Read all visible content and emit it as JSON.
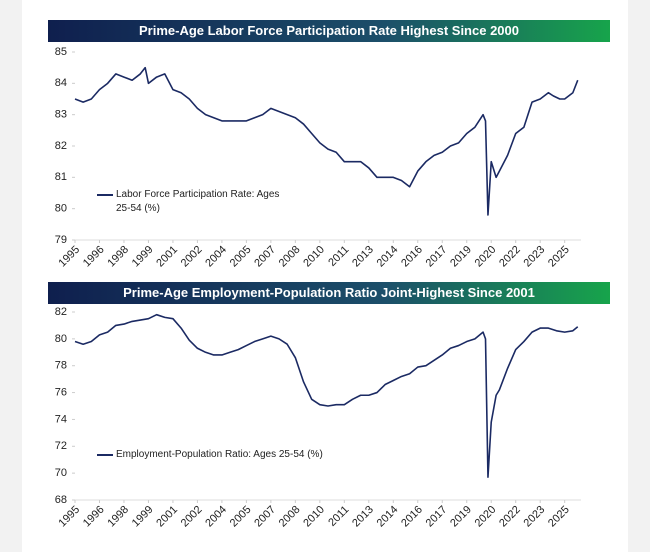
{
  "chart_data": [
    {
      "type": "line",
      "title": "Prime-Age Labor Force Participation Rate Highest Since 2000",
      "x": [
        1995,
        1995.5,
        1996,
        1996.5,
        1997,
        1997.5,
        1998,
        1998.5,
        1999,
        1999.3,
        1999.5,
        2000,
        2000.5,
        2001,
        2001.5,
        2002,
        2002.5,
        2003,
        2003.5,
        2004,
        2004.5,
        2005,
        2005.5,
        2006,
        2006.5,
        2007,
        2007.5,
        2008,
        2008.5,
        2009,
        2009.5,
        2010,
        2010.5,
        2011,
        2011.5,
        2012,
        2012.5,
        2013,
        2013.5,
        2014,
        2014.5,
        2015,
        2015.5,
        2016,
        2016.5,
        2017,
        2017.5,
        2018,
        2018.5,
        2019,
        2019.5,
        2020,
        2020.15,
        2020.3,
        2020.5,
        2020.8,
        2021,
        2021.5,
        2022,
        2022.5,
        2023,
        2023.5,
        2024,
        2024.3,
        2024.7,
        2025,
        2025.5,
        2025.8
      ],
      "series": [
        {
          "name": "Labor Force Participation Rate: Ages 25-54 (%)",
          "color": "#1b2a63",
          "values": [
            83.5,
            83.4,
            83.5,
            83.8,
            84.0,
            84.3,
            84.2,
            84.1,
            84.3,
            84.5,
            84.0,
            84.2,
            84.3,
            83.8,
            83.7,
            83.5,
            83.2,
            83.0,
            82.9,
            82.8,
            82.8,
            82.8,
            82.8,
            82.9,
            83.0,
            83.2,
            83.1,
            83.0,
            82.9,
            82.7,
            82.4,
            82.1,
            81.9,
            81.8,
            81.5,
            81.5,
            81.5,
            81.3,
            81.0,
            81.0,
            81.0,
            80.9,
            80.7,
            81.2,
            81.5,
            81.7,
            81.8,
            82.0,
            82.1,
            82.4,
            82.6,
            83.0,
            82.8,
            79.8,
            81.5,
            81.0,
            81.2,
            81.7,
            82.4,
            82.6,
            83.4,
            83.5,
            83.7,
            83.6,
            83.5,
            83.5,
            83.7,
            84.1
          ]
        }
      ],
      "xlim": [
        1995,
        2026
      ],
      "ylim": [
        79,
        85
      ],
      "yticks": [
        79,
        80,
        81,
        82,
        83,
        84,
        85
      ],
      "xticks": [
        1995,
        {
          "value": 1996.5,
          "label": "1996"
        },
        1998,
        {
          "value": 1999.5,
          "label": "1999"
        },
        2001,
        {
          "value": 2002.5,
          "label": "2002"
        },
        2004,
        {
          "value": 2005.5,
          "label": "2005"
        },
        2007,
        {
          "value": 2008.5,
          "label": "2008"
        },
        2010,
        {
          "value": 2011.5,
          "label": "2011"
        },
        2013,
        {
          "value": 2014.5,
          "label": "2014"
        },
        2016,
        {
          "value": 2017.5,
          "label": "2017"
        },
        2019,
        {
          "value": 2020.5,
          "label": "2020"
        },
        2022,
        {
          "value": 2023.5,
          "label": "2023"
        },
        2025
      ],
      "legend": "lower left",
      "grid": false
    },
    {
      "type": "line",
      "title": "Prime-Age Employment-Population Ratio Joint-Highest Since 2001",
      "x": [
        1995,
        1995.5,
        1996,
        1996.5,
        1997,
        1997.5,
        1998,
        1998.5,
        1999,
        1999.5,
        2000,
        2000.5,
        2001,
        2001.5,
        2002,
        2002.5,
        2003,
        2003.5,
        2004,
        2004.5,
        2005,
        2005.5,
        2006,
        2006.5,
        2007,
        2007.5,
        2008,
        2008.5,
        2009,
        2009.5,
        2010,
        2010.5,
        2011,
        2011.5,
        2012,
        2012.5,
        2013,
        2013.5,
        2014,
        2014.5,
        2015,
        2015.5,
        2016,
        2016.5,
        2017,
        2017.5,
        2018,
        2018.5,
        2019,
        2019.5,
        2020,
        2020.15,
        2020.3,
        2020.5,
        2020.8,
        2021,
        2021.5,
        2022,
        2022.5,
        2023,
        2023.5,
        2024,
        2024.5,
        2025,
        2025.5,
        2025.8
      ],
      "series": [
        {
          "name": "Employment-Population Ratio: Ages 25-54 (%)",
          "color": "#1b2a63",
          "values": [
            79.8,
            79.6,
            79.8,
            80.3,
            80.5,
            81.0,
            81.1,
            81.3,
            81.4,
            81.5,
            81.8,
            81.6,
            81.5,
            80.8,
            79.9,
            79.3,
            79.0,
            78.8,
            78.8,
            79.0,
            79.2,
            79.5,
            79.8,
            80.0,
            80.2,
            80.0,
            79.6,
            78.6,
            76.8,
            75.5,
            75.1,
            75.0,
            75.1,
            75.1,
            75.5,
            75.8,
            75.8,
            76.0,
            76.6,
            76.9,
            77.2,
            77.4,
            77.9,
            78.0,
            78.4,
            78.8,
            79.3,
            79.5,
            79.8,
            80.0,
            80.5,
            80.0,
            69.7,
            73.8,
            75.8,
            76.2,
            77.8,
            79.2,
            79.8,
            80.5,
            80.8,
            80.8,
            80.6,
            80.5,
            80.6,
            80.9
          ]
        }
      ],
      "xlim": [
        1995,
        2026
      ],
      "ylim": [
        68,
        82
      ],
      "yticks": [
        68,
        70,
        72,
        74,
        76,
        78,
        80,
        82
      ],
      "xticks": [
        1995,
        {
          "value": 1996.5,
          "label": "1996"
        },
        1998,
        {
          "value": 1999.5,
          "label": "1999"
        },
        2001,
        {
          "value": 2002.5,
          "label": "2002"
        },
        2004,
        {
          "value": 2005.5,
          "label": "2005"
        },
        2007,
        {
          "value": 2008.5,
          "label": "2008"
        },
        2010,
        {
          "value": 2011.5,
          "label": "2011"
        },
        2013,
        {
          "value": 2014.5,
          "label": "2014"
        },
        2016,
        {
          "value": 2017.5,
          "label": "2017"
        },
        2019,
        {
          "value": 2020.5,
          "label": "2020"
        },
        2022,
        {
          "value": 2023.5,
          "label": "2023"
        },
        2025
      ],
      "legend": "lower left",
      "grid": false
    }
  ]
}
